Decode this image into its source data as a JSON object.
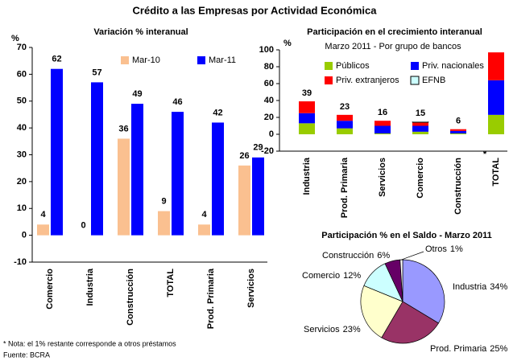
{
  "title": "Crédito a las Empresas por Actividad Económica",
  "notes": [
    "* Nota: el 1% restante corresponde a otros préstamos",
    "Fuente: BCRA"
  ],
  "chart_data": [
    {
      "type": "bar",
      "title": "Variación % interanual",
      "y_label": "%",
      "categories": [
        "Comercio",
        "Industria",
        "Construcción",
        "TOTAL",
        "Prod. Primaria",
        "Servicios"
      ],
      "series": [
        {
          "name": "Mar-10",
          "color": "#fac090",
          "values": [
            4,
            0,
            36,
            9,
            4,
            26
          ]
        },
        {
          "name": "Mar-11",
          "color": "#0000ff",
          "values": [
            62,
            57,
            49,
            46,
            42,
            29
          ]
        }
      ],
      "ylim": [
        -10,
        70
      ],
      "yticks": [
        -10,
        0,
        10,
        20,
        30,
        40,
        50,
        60,
        70
      ],
      "grid": false
    },
    {
      "type": "stacked_bar",
      "title": "Participación en el crecimiento interanual",
      "subtitle": "Marzo 2011 - Por grupo de bancos",
      "y_label": "%",
      "categories": [
        "Industria",
        "Prod. Primaria",
        "Servicios",
        "Comercio",
        "Construcción",
        "TOTAL"
      ],
      "series": [
        {
          "name": "Públicos",
          "color": "#99cc00",
          "values": [
            13,
            7,
            1,
            3,
            1,
            23
          ]
        },
        {
          "name": "Priv. nacionales",
          "color": "#0000ff",
          "values": [
            12,
            9,
            9,
            7,
            3,
            41
          ]
        },
        {
          "name": "Priv. extranjeros",
          "color": "#ff0000",
          "values": [
            14,
            7,
            6,
            4,
            2,
            33
          ]
        },
        {
          "name": "EFNB",
          "color": "#ccffff",
          "values": [
            0,
            0,
            0,
            1,
            0,
            0
          ]
        }
      ],
      "total_labels": [
        "39",
        "23",
        "16",
        "15",
        "6",
        "*"
      ],
      "ylim": [
        -20,
        100
      ],
      "yticks": [
        -20,
        0,
        20,
        40,
        60,
        80,
        100
      ],
      "grid": false
    },
    {
      "type": "pie",
      "title": "Participación % en el Saldo - Marzo 2011",
      "categories": [
        "Industria",
        "Prod. Primaria",
        "Servicios",
        "Comercio",
        "Construcción",
        "Otros"
      ],
      "values": [
        34,
        25,
        23,
        12,
        6,
        1
      ],
      "value_labels": [
        "34%",
        "25%",
        "23%",
        "12%",
        "6%",
        "1%"
      ],
      "colors": [
        "#9999ff",
        "#993366",
        "#ffffcc",
        "#ccffff",
        "#660066",
        "#ffffff"
      ]
    }
  ]
}
